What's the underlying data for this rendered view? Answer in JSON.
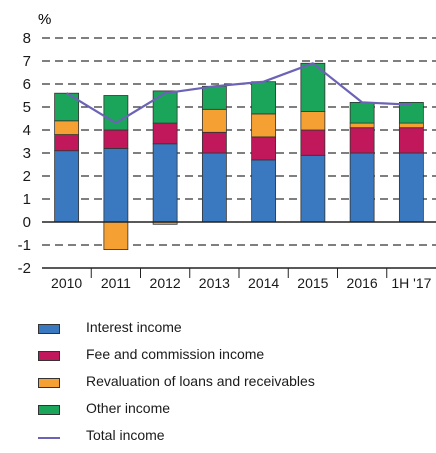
{
  "chart_data": {
    "type": "bar",
    "stacked": true,
    "unit_label": "%",
    "categories": [
      "2010",
      "2011",
      "2012",
      "2013",
      "2014",
      "2015",
      "2016",
      "1H '17"
    ],
    "ylim": [
      -2,
      8
    ],
    "yticks": [
      -2,
      -1,
      0,
      1,
      2,
      3,
      4,
      5,
      6,
      7,
      8
    ],
    "grid": true,
    "grid_style": "dashed",
    "legend_position": "bottom",
    "series": [
      {
        "name": "Interest income",
        "color": "#3a78bf",
        "values": [
          3.1,
          3.2,
          3.4,
          3.0,
          2.7,
          2.9,
          3.0,
          3.0
        ]
      },
      {
        "name": "Fee and commission income",
        "color": "#c0185a",
        "values": [
          0.7,
          0.8,
          0.9,
          0.9,
          1.0,
          1.1,
          1.1,
          1.1
        ]
      },
      {
        "name": "Revaluation of loans and receivables",
        "color": "#f5a033",
        "values": [
          0.6,
          -1.2,
          -0.1,
          1.0,
          1.0,
          0.8,
          0.2,
          0.2
        ]
      },
      {
        "name": "Other income",
        "color": "#1ba55a",
        "values": [
          1.2,
          1.5,
          1.4,
          1.0,
          1.4,
          2.1,
          0.9,
          0.9
        ]
      }
    ],
    "line_series": {
      "name": "Total income",
      "color": "#6b63b5",
      "values": [
        5.6,
        4.3,
        5.6,
        5.9,
        6.1,
        6.9,
        5.2,
        5.1
      ]
    }
  }
}
